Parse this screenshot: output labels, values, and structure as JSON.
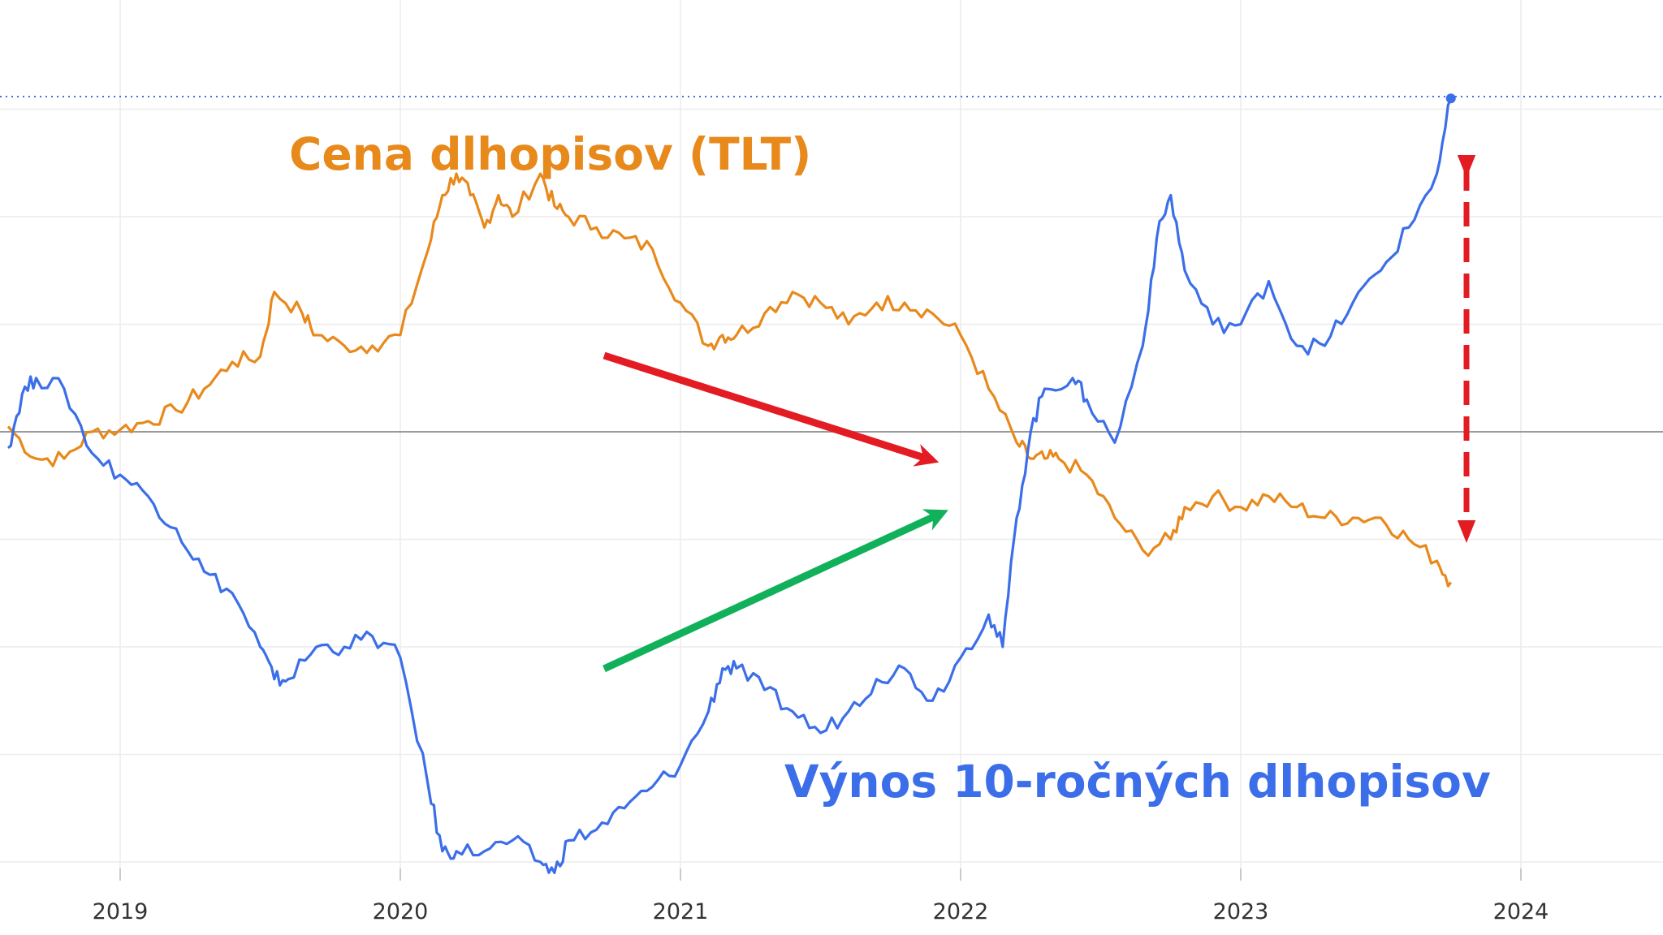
{
  "chart_data": {
    "type": "line",
    "title": "",
    "xlabel": "",
    "ylabel": "",
    "x_ticks": [
      "2019",
      "2020",
      "2021",
      "2022",
      "2023",
      "2024"
    ],
    "xlim": [
      2018.6,
      2024.5
    ],
    "ylim": [
      -47,
      37
    ],
    "grid": true,
    "zero_line": true,
    "series": [
      {
        "name": "Cena dlhopisov (TLT)",
        "color": "#e8891c",
        "x": [
          2018.6,
          2018.7,
          2018.8,
          2018.9,
          2019.0,
          2019.1,
          2019.2,
          2019.3,
          2019.4,
          2019.5,
          2019.55,
          2019.65,
          2019.7,
          2019.8,
          2019.9,
          2020.0,
          2020.1,
          2020.15,
          2020.2,
          2020.25,
          2020.3,
          2020.35,
          2020.4,
          2020.5,
          2020.55,
          2020.6,
          2020.7,
          2020.8,
          2020.9,
          2021.0,
          2021.1,
          2021.15,
          2021.2,
          2021.3,
          2021.4,
          2021.5,
          2021.6,
          2021.7,
          2021.8,
          2021.9,
          2022.0,
          2022.1,
          2022.2,
          2022.25,
          2022.3,
          2022.35,
          2022.45,
          2022.55,
          2022.65,
          2022.75,
          2022.8,
          2022.9,
          2023.0,
          2023.1,
          2023.2,
          2023.3,
          2023.4,
          2023.5,
          2023.6,
          2023.7,
          2023.75
        ],
        "values": [
          0.5,
          -2.5,
          -2.5,
          0,
          0.2,
          1,
          2,
          4,
          6.5,
          7,
          13,
          11,
          9,
          8,
          8,
          9,
          17,
          22,
          24,
          22,
          19,
          22,
          20,
          24,
          21,
          20,
          19,
          18,
          17,
          12,
          8,
          9,
          9,
          11,
          13,
          12,
          10,
          12,
          12,
          11,
          9,
          4,
          -1,
          -2.5,
          -2.5,
          -2.5,
          -4,
          -8,
          -11,
          -10,
          -7,
          -6,
          -7,
          -6,
          -7,
          -8,
          -8,
          -8,
          -10,
          -12,
          -14
        ]
      },
      {
        "name": "Výnos 10-ročných dlhopisov",
        "color": "#3b6ee8",
        "x": [
          2018.6,
          2018.65,
          2018.7,
          2018.8,
          2018.9,
          2019.0,
          2019.1,
          2019.2,
          2019.3,
          2019.4,
          2019.5,
          2019.55,
          2019.6,
          2019.7,
          2019.8,
          2019.9,
          2020.0,
          2020.1,
          2020.15,
          2020.2,
          2020.3,
          2020.4,
          2020.5,
          2020.55,
          2020.6,
          2020.7,
          2020.8,
          2020.9,
          2021.0,
          2021.1,
          2021.15,
          2021.2,
          2021.3,
          2021.4,
          2021.5,
          2021.6,
          2021.7,
          2021.8,
          2021.9,
          2022.0,
          2022.1,
          2022.15,
          2022.2,
          2022.25,
          2022.3,
          2022.4,
          2022.45,
          2022.55,
          2022.65,
          2022.7,
          2022.75,
          2022.8,
          2022.9,
          2023.0,
          2023.1,
          2023.2,
          2023.3,
          2023.4,
          2023.5,
          2023.6,
          2023.7,
          2023.75
        ],
        "values": [
          -1.5,
          3.5,
          5,
          4,
          -2,
          -4,
          -6,
          -9,
          -13,
          -15,
          -20,
          -23,
          -23,
          -20,
          -20,
          -19,
          -21,
          -33,
          -39,
          -39,
          -39,
          -38,
          -40,
          -41,
          -38,
          -37,
          -35,
          -33,
          -31,
          -26,
          -22,
          -22,
          -24,
          -26,
          -28,
          -26,
          -23,
          -22,
          -25,
          -21,
          -17,
          -20,
          -8,
          0,
          4,
          5,
          3,
          -1,
          8,
          18,
          22,
          15,
          10,
          10,
          14,
          8,
          8,
          12,
          15,
          19,
          24,
          31
        ]
      }
    ]
  }
}
